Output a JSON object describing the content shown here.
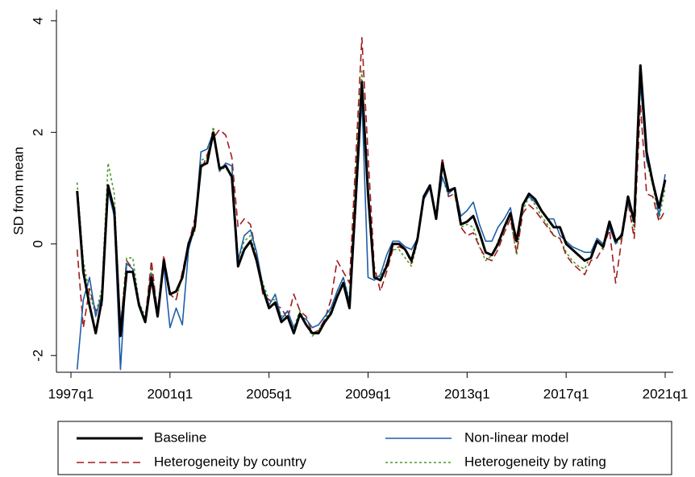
{
  "chart_data": {
    "type": "line",
    "y_label": "SD from mean",
    "x": [
      "1997q1",
      "1997q2",
      "1997q3",
      "1997q4",
      "1998q1",
      "1998q2",
      "1998q3",
      "1998q4",
      "1999q1",
      "1999q2",
      "1999q3",
      "1999q4",
      "2000q1",
      "2000q2",
      "2000q3",
      "2000q4",
      "2001q1",
      "2001q2",
      "2001q3",
      "2001q4",
      "2002q1",
      "2002q2",
      "2002q3",
      "2002q4",
      "2003q1",
      "2003q2",
      "2003q3",
      "2003q4",
      "2004q1",
      "2004q2",
      "2004q3",
      "2004q4",
      "2005q1",
      "2005q2",
      "2005q3",
      "2005q4",
      "2006q1",
      "2006q2",
      "2006q3",
      "2006q4",
      "2007q1",
      "2007q2",
      "2007q3",
      "2007q4",
      "2008q1",
      "2008q2",
      "2008q3",
      "2008q4",
      "2009q1",
      "2009q2",
      "2009q3",
      "2009q4",
      "2010q1",
      "2010q2",
      "2010q3",
      "2010q4",
      "2011q1",
      "2011q2",
      "2011q3",
      "2011q4",
      "2012q1",
      "2012q2",
      "2012q3",
      "2012q4",
      "2013q1",
      "2013q2",
      "2013q3",
      "2013q4",
      "2014q1",
      "2014q2",
      "2014q3",
      "2014q4",
      "2015q1",
      "2015q2",
      "2015q3",
      "2015q4",
      "2016q1",
      "2016q2",
      "2016q3",
      "2016q4",
      "2017q1",
      "2017q2",
      "2017q3",
      "2017q4",
      "2018q1",
      "2018q2",
      "2018q3",
      "2018q4",
      "2019q1",
      "2019q2",
      "2019q3",
      "2019q4",
      "2020q1",
      "2020q2",
      "2020q3",
      "2020q4",
      "2021q1"
    ],
    "xticks": [
      "1997q1",
      "2001q1",
      "2005q1",
      "2009q1",
      "2013q1",
      "2017q1",
      "2021q1"
    ],
    "ylim": [
      -2.3,
      4.2
    ],
    "yticks": [
      -2,
      0,
      2,
      4
    ],
    "legend": "bottom",
    "series": [
      {
        "name": "Baseline",
        "color": "#000000",
        "style": "solid",
        "values": [
          null,
          0.95,
          -0.5,
          -1.1,
          -1.6,
          -1.0,
          1.05,
          0.6,
          -1.65,
          -0.5,
          -0.5,
          -1.1,
          -1.4,
          -0.6,
          -1.3,
          -0.3,
          -0.9,
          -0.85,
          -0.6,
          0,
          0.3,
          1.4,
          1.45,
          2.0,
          1.35,
          1.4,
          1.2,
          -0.4,
          -0.1,
          0.05,
          -0.3,
          -0.8,
          -1.15,
          -1.05,
          -1.4,
          -1.3,
          -1.6,
          -1.25,
          -1.45,
          -1.6,
          -1.6,
          -1.4,
          -1.25,
          -0.95,
          -0.7,
          -1.15,
          0.8,
          2.9,
          0.9,
          -0.6,
          -0.65,
          -0.4,
          0,
          0,
          -0.1,
          -0.3,
          0.1,
          0.85,
          1.05,
          0.45,
          1.45,
          0.95,
          1.0,
          0.35,
          0.4,
          0.5,
          0.2,
          -0.15,
          -0.2,
          0,
          0.3,
          0.55,
          0.05,
          0.7,
          0.9,
          0.8,
          0.6,
          0.45,
          0.3,
          0.3,
          0,
          -0.1,
          -0.2,
          -0.3,
          -0.25,
          0.05,
          -0.05,
          0.4,
          0.05,
          0.15,
          0.85,
          0.4,
          3.2,
          1.65,
          1.1,
          0.65,
          1.15
        ]
      },
      {
        "name": "Non-linear model",
        "color": "#1f5fa8",
        "style": "solid",
        "values": [
          null,
          -2.25,
          -1.0,
          -0.6,
          -1.3,
          -0.9,
          0.95,
          0.5,
          -2.25,
          -0.35,
          -0.45,
          -1.05,
          -1.4,
          -0.55,
          -1.2,
          -0.4,
          -1.5,
          -1.15,
          -1.45,
          -0.1,
          0.3,
          1.65,
          1.7,
          2.0,
          1.3,
          1.45,
          1.4,
          -0.3,
          0.15,
          0.25,
          -0.15,
          -0.75,
          -1.1,
          -0.9,
          -1.35,
          -1.2,
          -1.5,
          -1.3,
          -1.35,
          -1.5,
          -1.45,
          -1.3,
          -1.15,
          -0.85,
          -0.6,
          -1.05,
          0.6,
          2.6,
          -0.6,
          -0.65,
          -0.55,
          -0.2,
          0.05,
          0.05,
          -0.05,
          -0.1,
          0.1,
          0.8,
          1.0,
          0.5,
          1.2,
          0.9,
          1.0,
          0.5,
          0.6,
          0.75,
          0.35,
          0.05,
          0.05,
          0.3,
          0.45,
          0.65,
          0.05,
          0.7,
          0.85,
          0.75,
          0.6,
          0.45,
          0.45,
          0.15,
          0.05,
          -0.05,
          -0.1,
          -0.15,
          -0.15,
          0.1,
          0,
          0.3,
          0,
          0.2,
          0.75,
          0.4,
          2.9,
          1.5,
          1.15,
          0.5,
          1.25
        ]
      },
      {
        "name": "Heterogeneity by country",
        "color": "#a01c1c",
        "style": "dashed",
        "values": [
          null,
          -0.1,
          -1.5,
          -0.8,
          -1.2,
          -1.1,
          1.0,
          0.55,
          -1.5,
          -0.3,
          -0.45,
          -1.1,
          -1.35,
          -0.3,
          -1.25,
          -0.2,
          -0.9,
          -1.0,
          -0.5,
          0,
          0.45,
          1.3,
          1.6,
          1.9,
          2.05,
          1.95,
          1.55,
          0.3,
          0.45,
          0.35,
          -0.2,
          -0.9,
          -1.0,
          -1.1,
          -1.15,
          -1.35,
          -0.9,
          -1.2,
          -1.3,
          -1.6,
          -1.55,
          -1.35,
          -1.0,
          -0.3,
          -0.5,
          -0.7,
          1.5,
          3.7,
          1.6,
          -0.4,
          -0.85,
          -0.5,
          -0.1,
          -0.05,
          -0.1,
          -0.35,
          0.05,
          0.8,
          1.0,
          0.5,
          1.55,
          0.85,
          0.9,
          0.3,
          0.15,
          0.2,
          -0.05,
          -0.25,
          -0.3,
          -0.1,
          0.2,
          0.45,
          -0.15,
          0.55,
          0.7,
          0.6,
          0.45,
          0.3,
          0.15,
          0.1,
          -0.2,
          -0.35,
          -0.45,
          -0.55,
          -0.3,
          -0.25,
          -0.05,
          0.25,
          -0.7,
          0.1,
          0.75,
          0.1,
          2.5,
          0.9,
          0.85,
          0.4,
          0.6
        ]
      },
      {
        "name": "Heterogeneity by rating",
        "color": "#4a9a2a",
        "style": "dotted",
        "values": [
          null,
          1.1,
          -0.3,
          -0.9,
          -1.25,
          -0.8,
          1.45,
          0.9,
          -1.5,
          -0.25,
          -0.25,
          -1.05,
          -1.3,
          -0.45,
          -1.2,
          -0.25,
          -0.9,
          -1.0,
          -0.55,
          0.05,
          0.2,
          1.5,
          1.55,
          2.1,
          1.35,
          1.35,
          1.25,
          -0.3,
          0.05,
          0.15,
          -0.25,
          -0.7,
          -1.0,
          -1.0,
          -1.3,
          -1.2,
          -1.5,
          -1.2,
          -1.45,
          -1.65,
          -1.55,
          -1.35,
          -1.2,
          -0.85,
          -0.6,
          -1.0,
          1.2,
          3.1,
          0.8,
          -0.5,
          -0.6,
          -0.35,
          -0.1,
          -0.1,
          -0.25,
          -0.4,
          0.05,
          0.8,
          1.0,
          0.5,
          1.2,
          0.85,
          0.9,
          0.3,
          0.35,
          0.3,
          -0.05,
          -0.3,
          -0.2,
          0.05,
          0.3,
          0.45,
          -0.2,
          0.6,
          0.85,
          0.7,
          0.5,
          0.35,
          0.15,
          0.1,
          -0.15,
          -0.3,
          -0.4,
          -0.45,
          -0.2,
          0.1,
          -0.1,
          0.35,
          0,
          0.1,
          0.8,
          0.25,
          2.9,
          1.5,
          1.05,
          0.45,
          1.0
        ]
      }
    ]
  }
}
